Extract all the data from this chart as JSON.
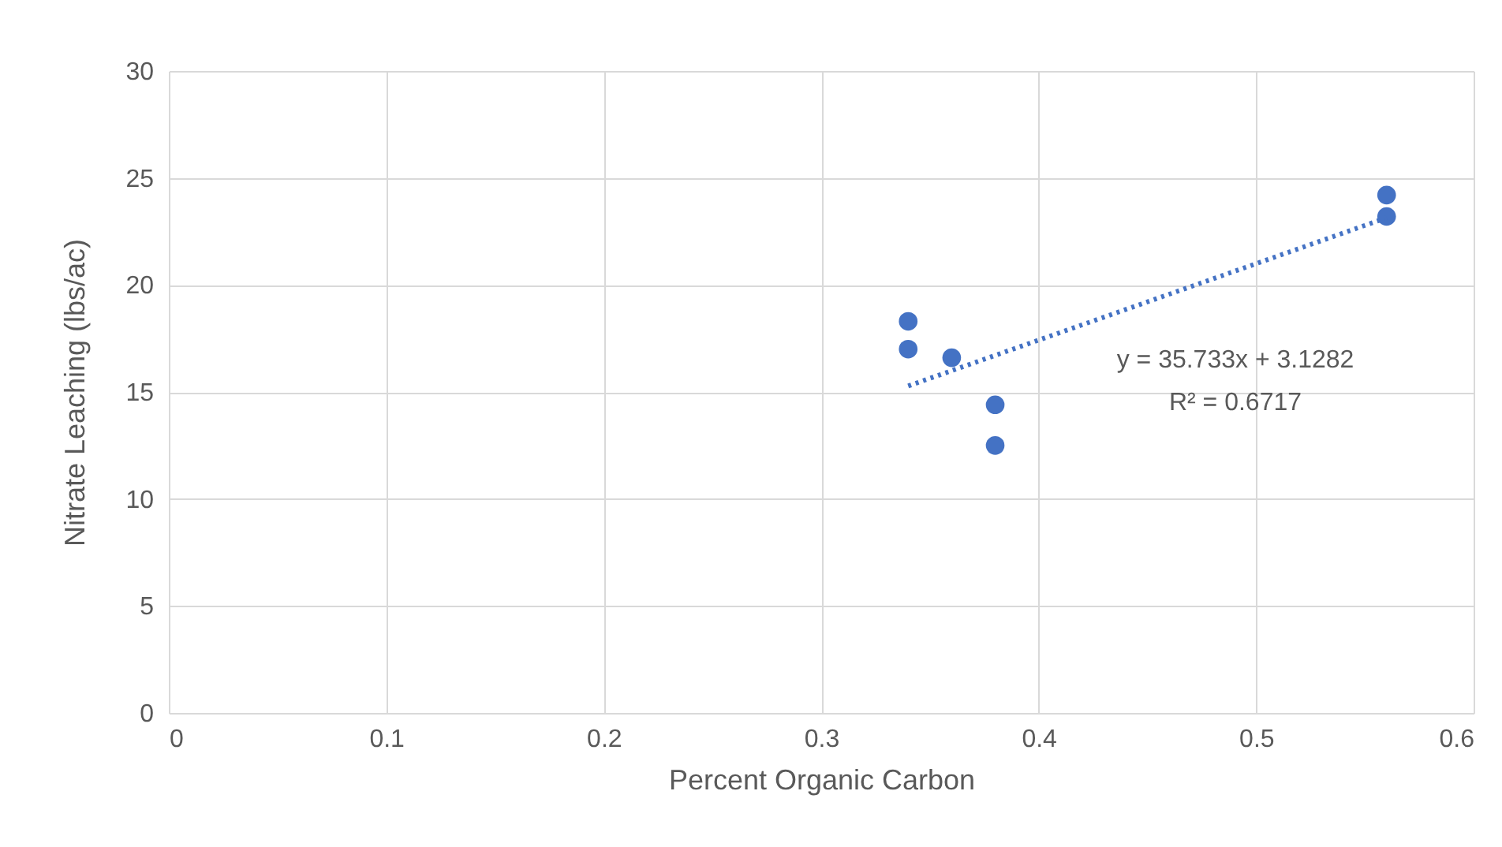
{
  "chart_data": {
    "type": "scatter",
    "xlabel": "Percent Organic Carbon",
    "ylabel": "Nitrate Leaching (lbs/ac)",
    "annotations": [
      "y = 35.733x + 3.1282",
      "R² = 0.6717"
    ],
    "x": [
      0.34,
      0.34,
      0.36,
      0.38,
      0.38,
      0.56,
      0.56
    ],
    "series": [
      {
        "color": "#4472c4",
        "values": [
          18.3,
          17.0,
          16.6,
          14.4,
          12.5,
          24.2,
          23.2
        ]
      },
      {
        "type": "line",
        "color": "#4472c4",
        "line_style": "dotted",
        "marker": "none",
        "x": [
          0.34,
          0.56
        ],
        "values": [
          15.28,
          23.14
        ]
      }
    ],
    "xlim": [
      0,
      0.6
    ],
    "xticks": [
      0,
      0.1,
      0.2,
      0.3,
      0.4,
      0.5,
      0.6
    ],
    "ylim": [
      0,
      30
    ],
    "yticks": [
      0,
      5,
      10,
      15,
      20,
      25,
      30
    ],
    "grid": true,
    "marker": "circle"
  }
}
